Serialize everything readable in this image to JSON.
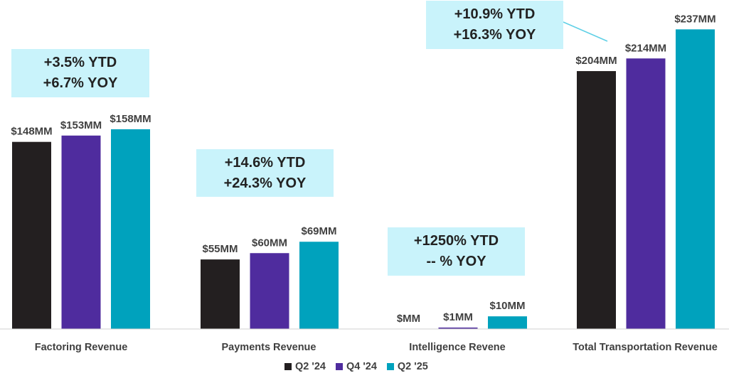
{
  "chart_data": {
    "type": "bar",
    "categories": [
      "Factoring Revenue",
      "Payments Revenue",
      "Intelligence Revene",
      "Total Transportation Revenue"
    ],
    "series": [
      {
        "name": "Q2 '24",
        "color": "#231f20",
        "values": [
          148,
          55,
          0,
          204
        ],
        "labels": [
          "$148MM",
          "$55MM",
          "$MM",
          "$204MM"
        ]
      },
      {
        "name": "Q4 '24",
        "color": "#4f2c9e",
        "values": [
          153,
          60,
          1,
          214
        ],
        "labels": [
          "$153MM",
          "$60MM",
          "$1MM",
          "$214MM"
        ]
      },
      {
        "name": "Q2 '25",
        "color": "#00a2bd",
        "values": [
          158,
          69,
          10,
          237
        ],
        "labels": [
          "$158MM",
          "$69MM",
          "$10MM",
          "$237MM"
        ]
      }
    ],
    "ylim": [
      0,
      240
    ],
    "grid": false,
    "legend_position": "bottom",
    "annotations": [
      {
        "category": "Factoring Revenue",
        "line1": "+3.5% YTD",
        "line2": "+6.7% YOY"
      },
      {
        "category": "Payments Revenue",
        "line1": "+14.6% YTD",
        "line2": "+24.3% YOY"
      },
      {
        "category": "Intelligence Revene",
        "line1": "+1250% YTD",
        "line2": "-- % YOY"
      },
      {
        "category": "Total Transportation Revenue",
        "line1": "+10.9% YTD",
        "line2": "+16.3% YOY"
      }
    ]
  }
}
